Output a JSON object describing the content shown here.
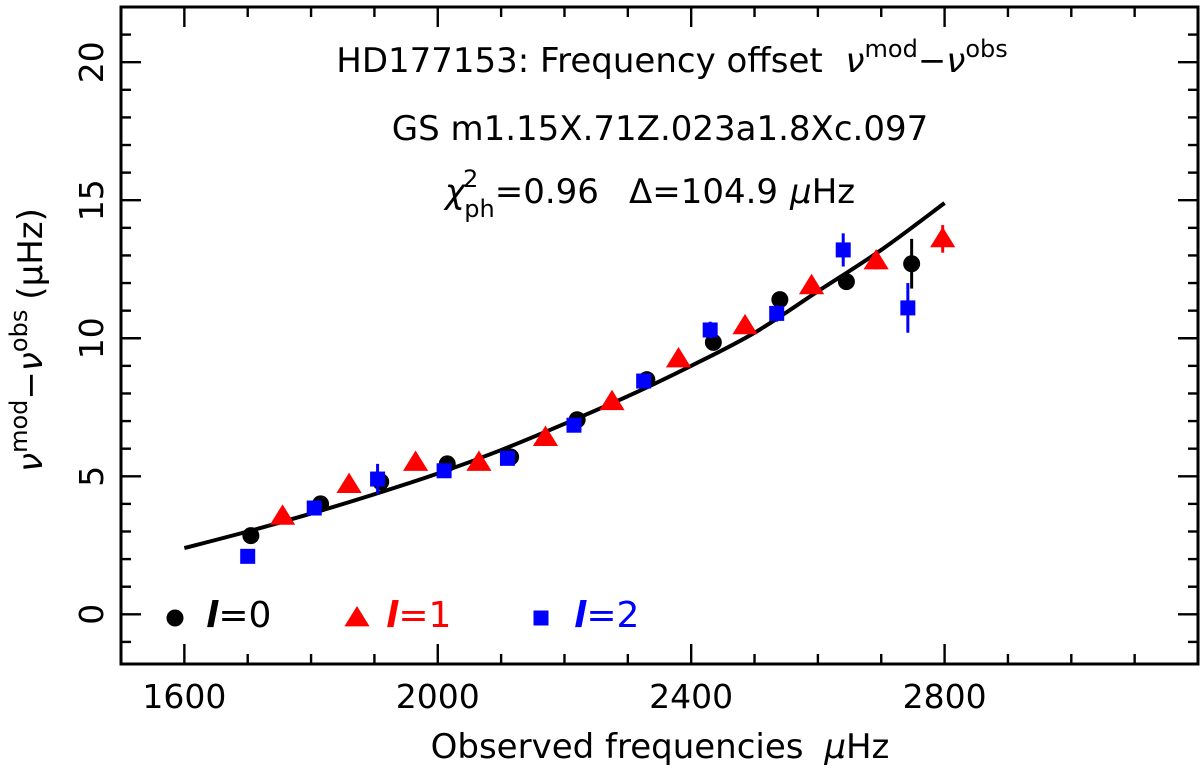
{
  "chart_data": {
    "type": "scatter",
    "title_lines": {
      "line1": "HD177153: Frequency offset",
      "line1_math": {
        "base": "ν",
        "sup_mod": "mod",
        "minus": "−",
        "sup_obs": "obs"
      },
      "line2": "GS m1.15X.71Z.023a1.8Xc.097",
      "line3_chi": {
        "base": "χ",
        "sup": "2",
        "sub": "ph",
        "value": "=0.96"
      },
      "line3_delta": {
        "text": "Δ=104.9",
        "unit_mu": "μ",
        "unit_rest": "Hz"
      }
    },
    "xlabel": {
      "text": "Observed frequencies",
      "mu": "μ",
      "rest": "Hz"
    },
    "ylabel": {
      "base1": "ν",
      "sup1": "mod",
      "minus": "−",
      "base2": "ν",
      "sup2": "obs",
      "unit": "(μHz)"
    },
    "xlim": [
      1500,
      3200
    ],
    "ylim": [
      -1.8,
      22
    ],
    "xticks_major": [
      1600,
      2000,
      2400,
      2800
    ],
    "xtick_labels": [
      "1600",
      "2000",
      "2400",
      "2800"
    ],
    "xticks_minor_step": 100,
    "yticks_major": [
      0,
      5,
      10,
      15,
      20
    ],
    "ytick_labels": [
      "0",
      "5",
      "10",
      "15",
      "20"
    ],
    "yticks_minor_step": 1,
    "fit_curve": {
      "color": "#000000",
      "x": [
        1600,
        1700,
        1800,
        1900,
        2000,
        2100,
        2200,
        2300,
        2400,
        2500,
        2600,
        2700,
        2800
      ],
      "y": [
        2.4,
        3.0,
        3.65,
        4.35,
        5.1,
        5.95,
        6.9,
        7.9,
        9.0,
        10.2,
        11.7,
        13.2,
        14.9
      ]
    },
    "series": [
      {
        "name": "l=0",
        "marker": "circle",
        "color": "#000000",
        "x": [
          1705,
          1815,
          1910,
          2015,
          2115,
          2220,
          2330,
          2435,
          2540,
          2645,
          2748
        ],
        "y": [
          2.85,
          4.0,
          4.8,
          5.45,
          5.7,
          7.05,
          8.5,
          9.85,
          11.4,
          12.05,
          12.7
        ],
        "err": [
          0.15,
          0.15,
          0.2,
          0.15,
          0.15,
          0.15,
          0.15,
          0.2,
          0.15,
          0.3,
          0.9
        ]
      },
      {
        "name": "l=1",
        "marker": "triangle",
        "color": "#ff0000",
        "x": [
          1755,
          1860,
          1965,
          2065,
          2170,
          2275,
          2380,
          2485,
          2590,
          2692,
          2797
        ],
        "y": [
          3.55,
          4.7,
          5.5,
          5.5,
          6.4,
          7.7,
          9.25,
          10.45,
          11.9,
          12.8,
          13.6
        ],
        "err": [
          0.15,
          0.15,
          0.15,
          0.15,
          0.15,
          0.15,
          0.15,
          0.15,
          0.2,
          0.3,
          0.5
        ]
      },
      {
        "name": "l=2",
        "marker": "square",
        "color": "#0000ff",
        "x": [
          1700,
          1805,
          1905,
          2010,
          2110,
          2215,
          2325,
          2430,
          2535,
          2640,
          2742
        ],
        "y": [
          2.1,
          3.85,
          4.9,
          5.2,
          5.65,
          6.85,
          8.45,
          10.3,
          10.9,
          13.2,
          11.1
        ],
        "err": [
          0.15,
          0.2,
          0.55,
          0.15,
          0.15,
          0.2,
          0.15,
          0.3,
          0.3,
          0.6,
          0.9
        ]
      }
    ],
    "legend": [
      {
        "label_l": "l",
        "label_rest": "=0",
        "color": "#000000",
        "marker": "circle"
      },
      {
        "label_l": "l",
        "label_rest": "=1",
        "color": "#ff0000",
        "marker": "triangle"
      },
      {
        "label_l": "l",
        "label_rest": "=2",
        "color": "#0000ff",
        "marker": "square"
      }
    ],
    "legend_position": "bottom-left"
  }
}
